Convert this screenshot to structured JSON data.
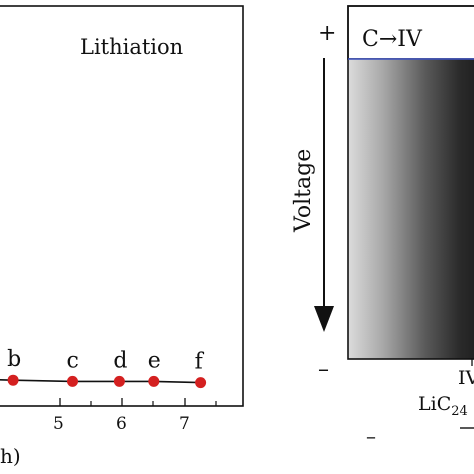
{
  "left_panel": {
    "title": "Lithiation",
    "x_ticks": [
      "5",
      "6",
      "7"
    ],
    "xlabel_fragment": "h)",
    "points": [
      {
        "label": "b",
        "x": 4.25,
        "y": 0.04
      },
      {
        "label": "c",
        "x": 5.2,
        "y": 0.03
      },
      {
        "label": "d",
        "x": 5.95,
        "y": 0.03
      },
      {
        "label": "e",
        "x": 6.5,
        "y": 0.03
      },
      {
        "label": "f",
        "x": 7.25,
        "y": 0.02
      }
    ],
    "xlim": [
      3.9,
      7.65
    ],
    "ylim": [
      0,
      1
    ]
  },
  "right_panel": {
    "plus_sign": "+",
    "minus_sign": "–",
    "stage_label": "C→IV",
    "axis_label": "Voltage",
    "bottom_label_top": "IV",
    "bottom_label": "LiC24",
    "dash": "–"
  },
  "colors": {
    "point": "#d42020",
    "line": "#111111",
    "band_line": "#3a4fbf",
    "gradient_light": "#d9d9d9",
    "gradient_dark": "#1f1f1f"
  }
}
